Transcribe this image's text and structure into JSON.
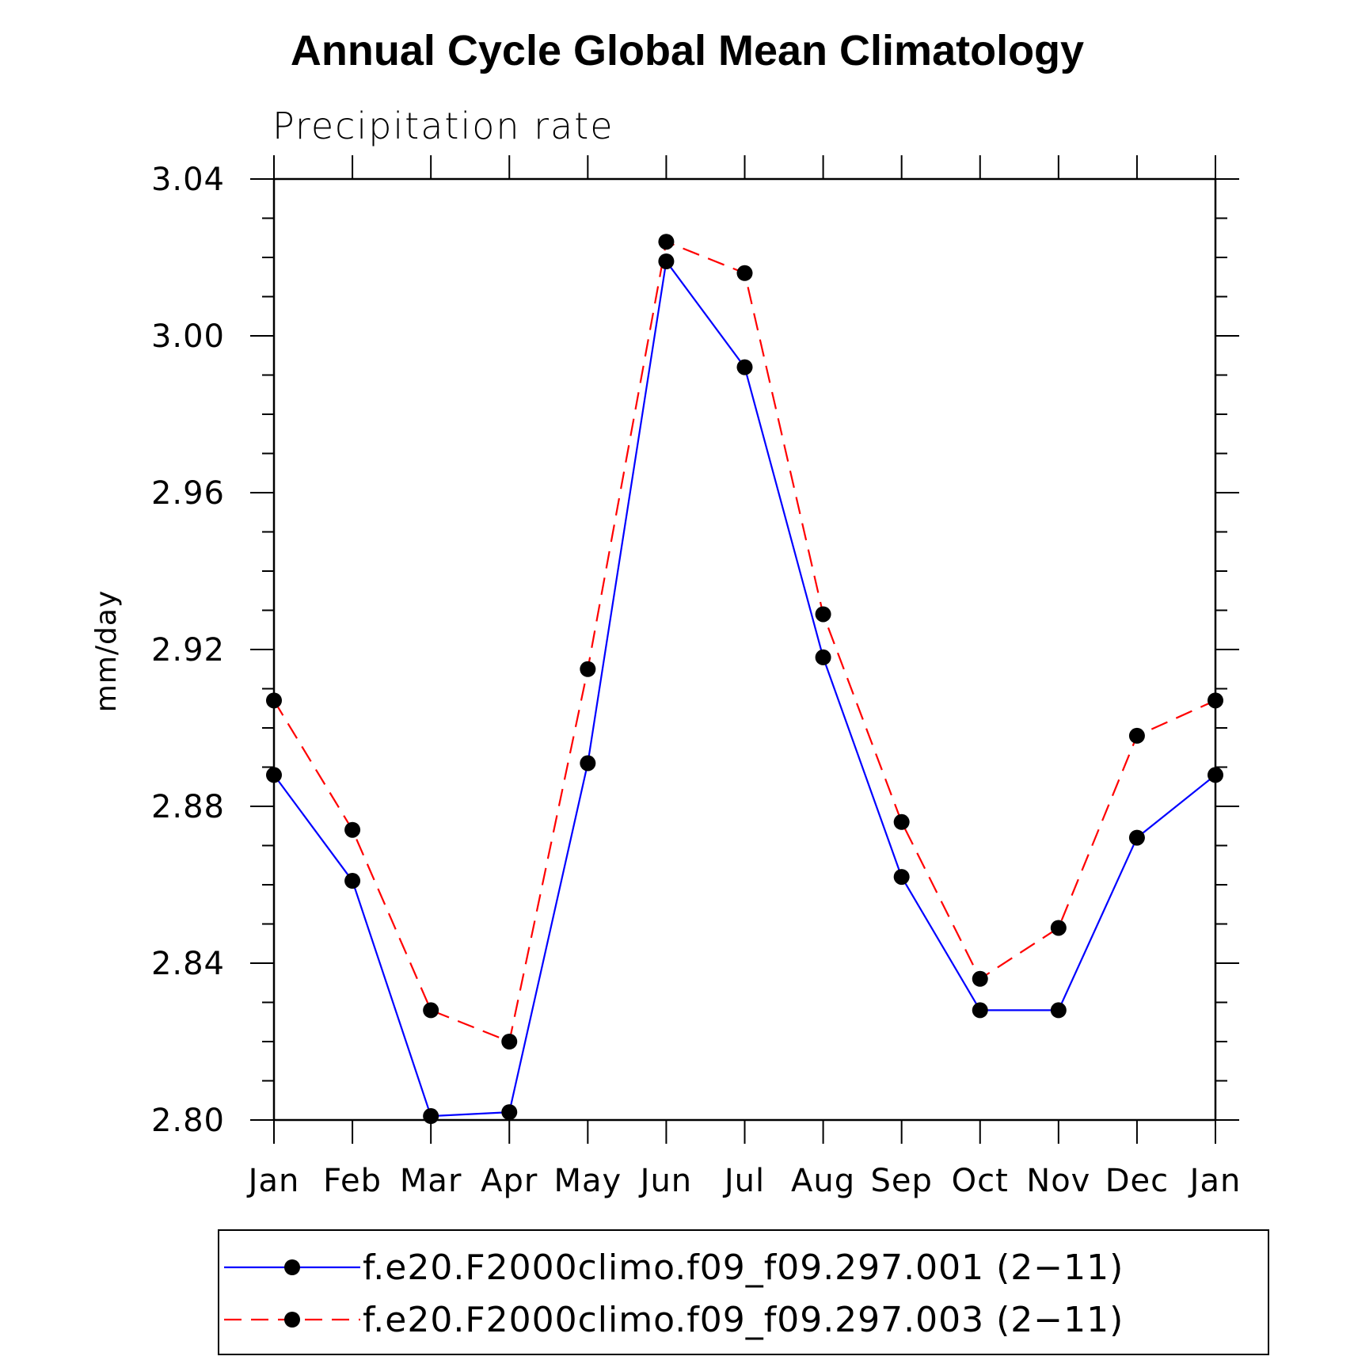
{
  "chart_data": {
    "type": "line",
    "title": "Annual Cycle Global Mean Climatology",
    "subtitle": "Precipitation rate",
    "xlabel": "",
    "ylabel": "mm/day",
    "categories": [
      "Jan",
      "Feb",
      "Mar",
      "Apr",
      "May",
      "Jun",
      "Jul",
      "Aug",
      "Sep",
      "Oct",
      "Nov",
      "Dec",
      "Jan"
    ],
    "ylim": [
      2.8,
      3.04
    ],
    "yticks": [
      "2.80",
      "2.84",
      "2.88",
      "2.92",
      "2.96",
      "3.00",
      "3.04"
    ],
    "ytick_values": [
      2.8,
      2.84,
      2.88,
      2.92,
      2.96,
      3.0,
      3.04
    ],
    "grid": false,
    "legend_position": "bottom",
    "marker": "filled-circle",
    "series": [
      {
        "name": "f.e20.F2000climo.f09_f09.297.001 (2−11)",
        "color": "#0000ff",
        "line_style": "solid",
        "values": [
          2.888,
          2.861,
          2.801,
          2.802,
          2.891,
          3.019,
          2.992,
          2.918,
          2.862,
          2.828,
          2.828,
          2.872,
          2.888
        ]
      },
      {
        "name": "f.e20.F2000climo.f09_f09.297.003 (2−11)",
        "color": "#ff0000",
        "line_style": "dashed",
        "values": [
          2.907,
          2.874,
          2.828,
          2.82,
          2.915,
          3.024,
          3.016,
          2.929,
          2.876,
          2.836,
          2.849,
          2.898,
          2.907
        ]
      }
    ]
  }
}
